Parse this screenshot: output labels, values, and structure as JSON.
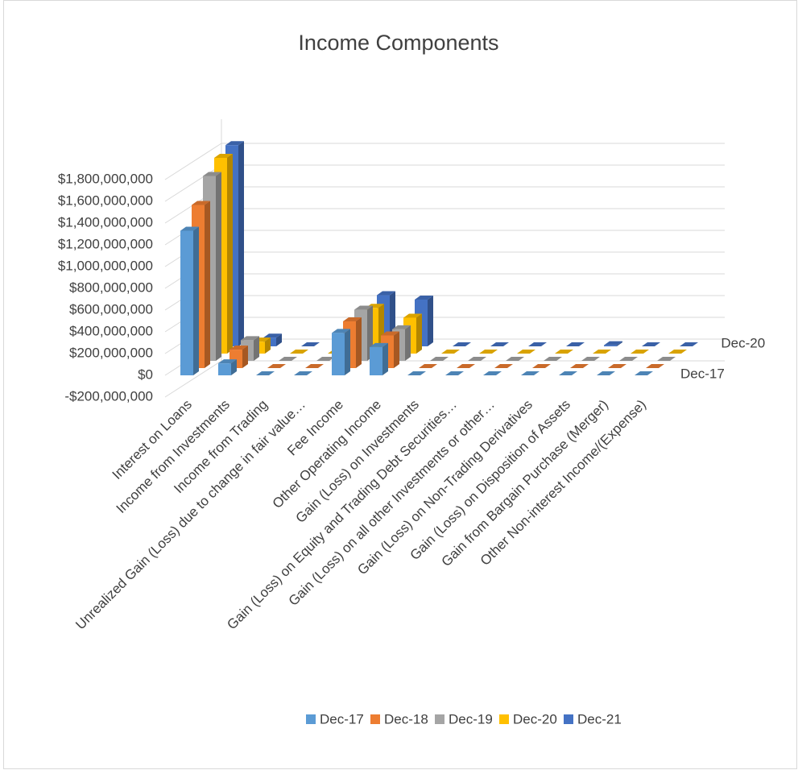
{
  "chart_data": {
    "type": "bar3d",
    "title": "Income Components",
    "categories": [
      "Interest on Loans",
      "Income from Investments",
      "Income from Trading",
      "Unrealized Gain (Loss) due to change in fair value…",
      "Fee Income",
      "Other Operating Income",
      "Gain (Loss)  on Investments",
      "Gain (Loss) on Equity and Trading Debt Securities…",
      "Gain (Loss) on all other Investments or other…",
      "Gain (Loss) on Non-Trading Derivatives",
      "Gain (Loss) on Disposition of Assets",
      "Gain from Bargain Purchase (Merger)",
      "Other Non-interest Income/(Expense)"
    ],
    "series": [
      {
        "name": "Dec-17",
        "color": "#5b9bd5",
        "values": [
          1330000000,
          110000000,
          0,
          0,
          390000000,
          260000000,
          0,
          0,
          0,
          0,
          0,
          0,
          0
        ]
      },
      {
        "name": "Dec-18",
        "color": "#ed7d31",
        "values": [
          1500000000,
          170000000,
          0,
          0,
          430000000,
          300000000,
          0,
          0,
          0,
          0,
          0,
          0,
          0
        ]
      },
      {
        "name": "Dec-19",
        "color": "#a5a5a5",
        "values": [
          1700000000,
          190000000,
          0,
          0,
          470000000,
          290000000,
          0,
          0,
          0,
          0,
          0,
          0,
          0
        ]
      },
      {
        "name": "Dec-20",
        "color": "#ffc000",
        "values": [
          1800000000,
          110000000,
          0,
          0,
          420000000,
          330000000,
          0,
          0,
          0,
          0,
          0,
          0,
          0
        ]
      },
      {
        "name": "Dec-21",
        "color": "#4472c4",
        "values": [
          1850000000,
          80000000,
          0,
          0,
          470000000,
          430000000,
          0,
          0,
          0,
          0,
          10000000,
          0,
          0
        ]
      }
    ],
    "ylim": [
      -200000000,
      1800000000
    ],
    "yticks": [
      {
        "value": -200000000,
        "label": "-$200,000,000"
      },
      {
        "value": 0,
        "label": "$0"
      },
      {
        "value": 200000000,
        "label": "$200,000,000"
      },
      {
        "value": 400000000,
        "label": "$400,000,000"
      },
      {
        "value": 600000000,
        "label": "$600,000,000"
      },
      {
        "value": 800000000,
        "label": "$800,000,000"
      },
      {
        "value": 1000000000,
        "label": "$1,000,000,000"
      },
      {
        "value": 1200000000,
        "label": "$1,200,000,000"
      },
      {
        "value": 1400000000,
        "label": "$1,400,000,000"
      },
      {
        "value": 1600000000,
        "label": "$1,600,000,000"
      },
      {
        "value": 1800000000,
        "label": "$1,800,000,000"
      }
    ],
    "depth_labels": [
      0,
      3
    ],
    "grid": true,
    "legend": "bottom"
  }
}
